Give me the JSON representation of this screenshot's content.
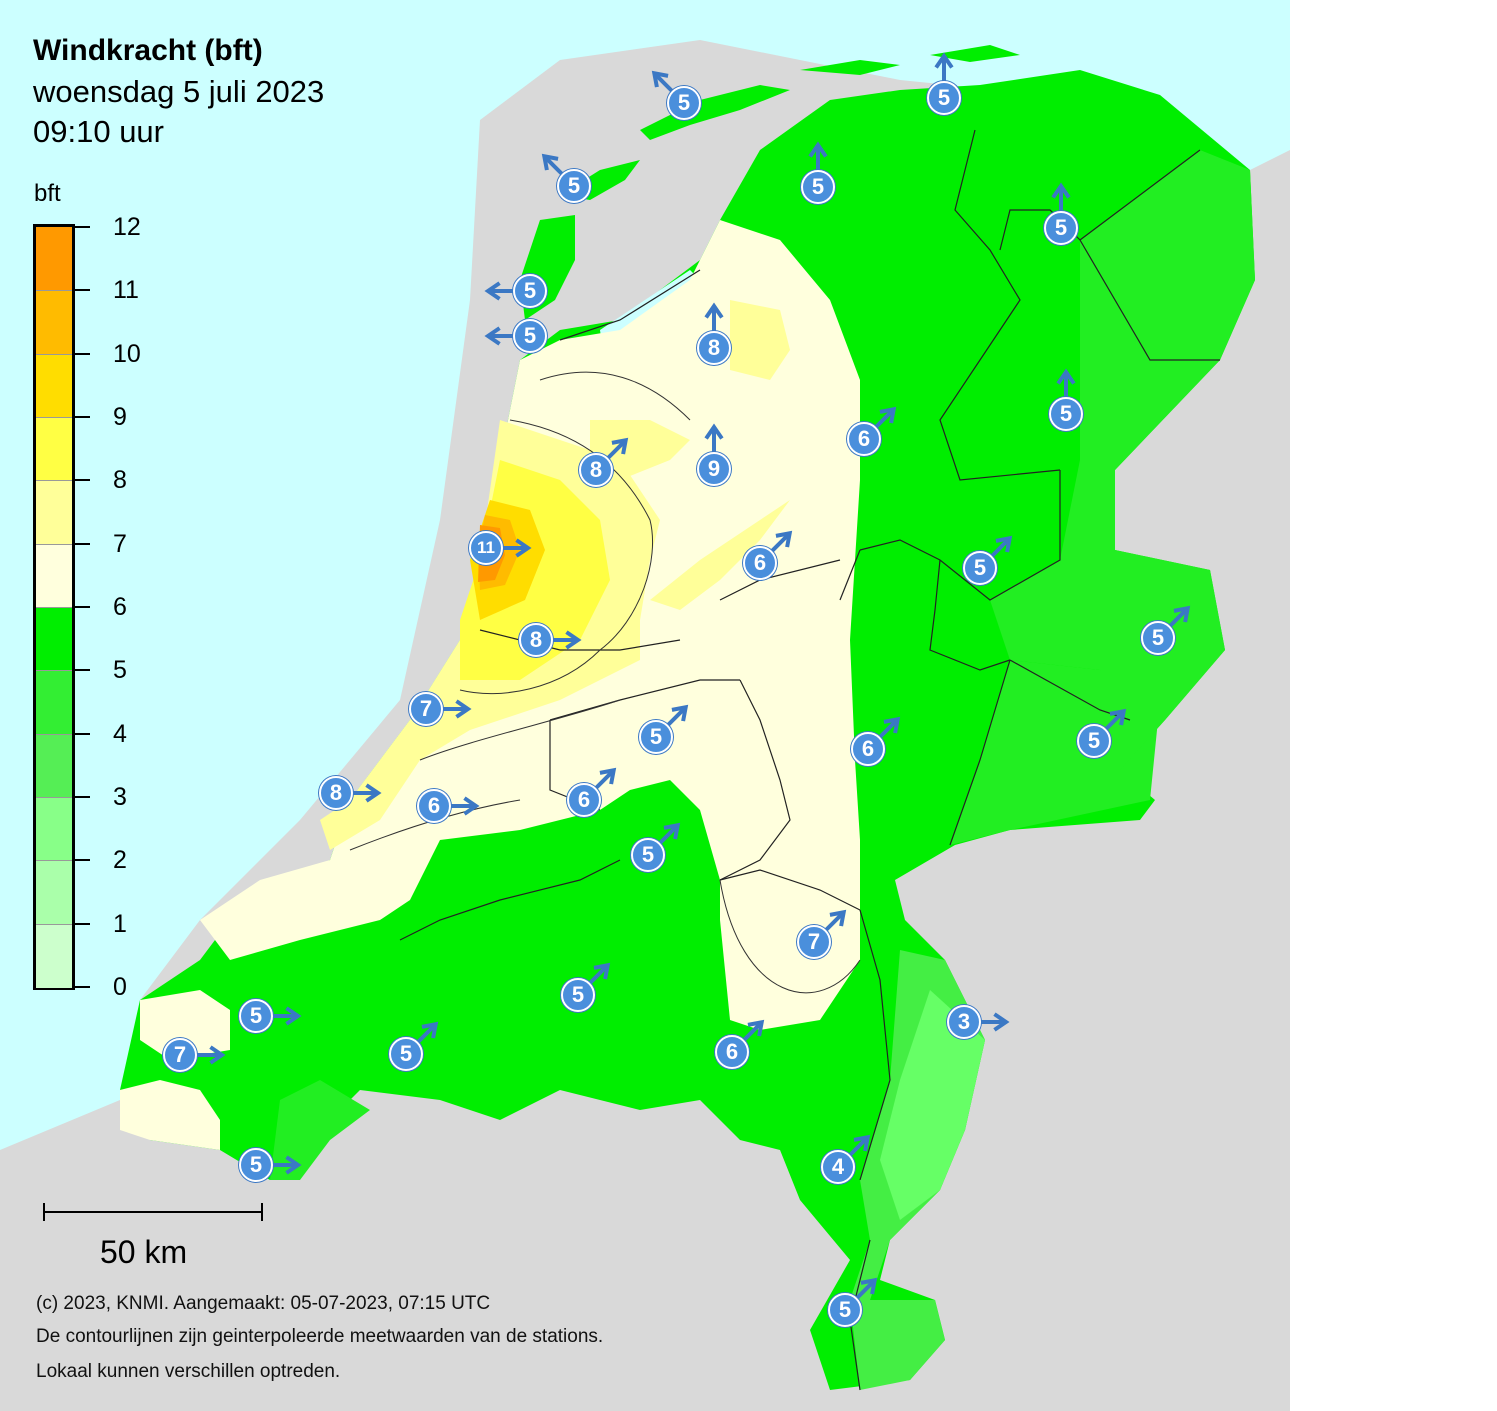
{
  "header": {
    "title": "Windkracht (bft)",
    "subtitle": "woensdag 5 juli 2023",
    "time": "09:10 uur"
  },
  "legend": {
    "unit": "bft",
    "labels": [
      "12",
      "11",
      "10",
      "9",
      "8",
      "7",
      "6",
      "5",
      "4",
      "3",
      "2",
      "1",
      "0"
    ],
    "colors": [
      "#ff9900",
      "#ffbb00",
      "#ffdd00",
      "#ffff44",
      "#ffff99",
      "#ffffdd",
      "#00ee00",
      "#33ee33",
      "#55ee55",
      "#88ff88",
      "#aaffaa",
      "#ccffcc"
    ]
  },
  "scale": {
    "label": "50 km"
  },
  "credits": {
    "line1": "(c) 2023, KNMI. Aangemaakt: 05-07-2023, 07:15 UTC",
    "line2": "De contourlijnen zijn geinterpoleerde meetwaarden van de stations.",
    "line3": "Lokaal kunnen verschillen optreden."
  },
  "colors": {
    "sea": "#ccffff",
    "land_foreign": "#d9d9d9",
    "station": "#4a8fdc"
  },
  "stations": [
    {
      "value": "5",
      "dir": "NW"
    },
    {
      "value": "5",
      "dir": "N"
    },
    {
      "value": "5",
      "dir": "NW"
    },
    {
      "value": "5",
      "dir": "N"
    },
    {
      "value": "5",
      "dir": "N"
    },
    {
      "value": "5",
      "dir": "W"
    },
    {
      "value": "5",
      "dir": "W"
    },
    {
      "value": "8",
      "dir": "N"
    },
    {
      "value": "6",
      "dir": "NE"
    },
    {
      "value": "5",
      "dir": "N"
    },
    {
      "value": "8",
      "dir": "NE"
    },
    {
      "value": "9",
      "dir": "N"
    },
    {
      "value": "11",
      "dir": "E"
    },
    {
      "value": "6",
      "dir": "NE"
    },
    {
      "value": "5",
      "dir": "NE"
    },
    {
      "value": "5",
      "dir": "NE"
    },
    {
      "value": "8",
      "dir": "E"
    },
    {
      "value": "7",
      "dir": "E"
    },
    {
      "value": "5",
      "dir": "NE"
    },
    {
      "value": "6",
      "dir": "NE"
    },
    {
      "value": "5",
      "dir": "NE"
    },
    {
      "value": "8",
      "dir": "E"
    },
    {
      "value": "6",
      "dir": "E"
    },
    {
      "value": "6",
      "dir": "NE"
    },
    {
      "value": "5",
      "dir": "NE"
    },
    {
      "value": "7",
      "dir": "NE"
    },
    {
      "value": "5",
      "dir": "NE"
    },
    {
      "value": "5",
      "dir": "E"
    },
    {
      "value": "7",
      "dir": "E"
    },
    {
      "value": "5",
      "dir": "NE"
    },
    {
      "value": "6",
      "dir": "NE"
    },
    {
      "value": "3",
      "dir": "E"
    },
    {
      "value": "5",
      "dir": "E"
    },
    {
      "value": "4",
      "dir": "NE"
    },
    {
      "value": "5",
      "dir": "NE"
    }
  ]
}
